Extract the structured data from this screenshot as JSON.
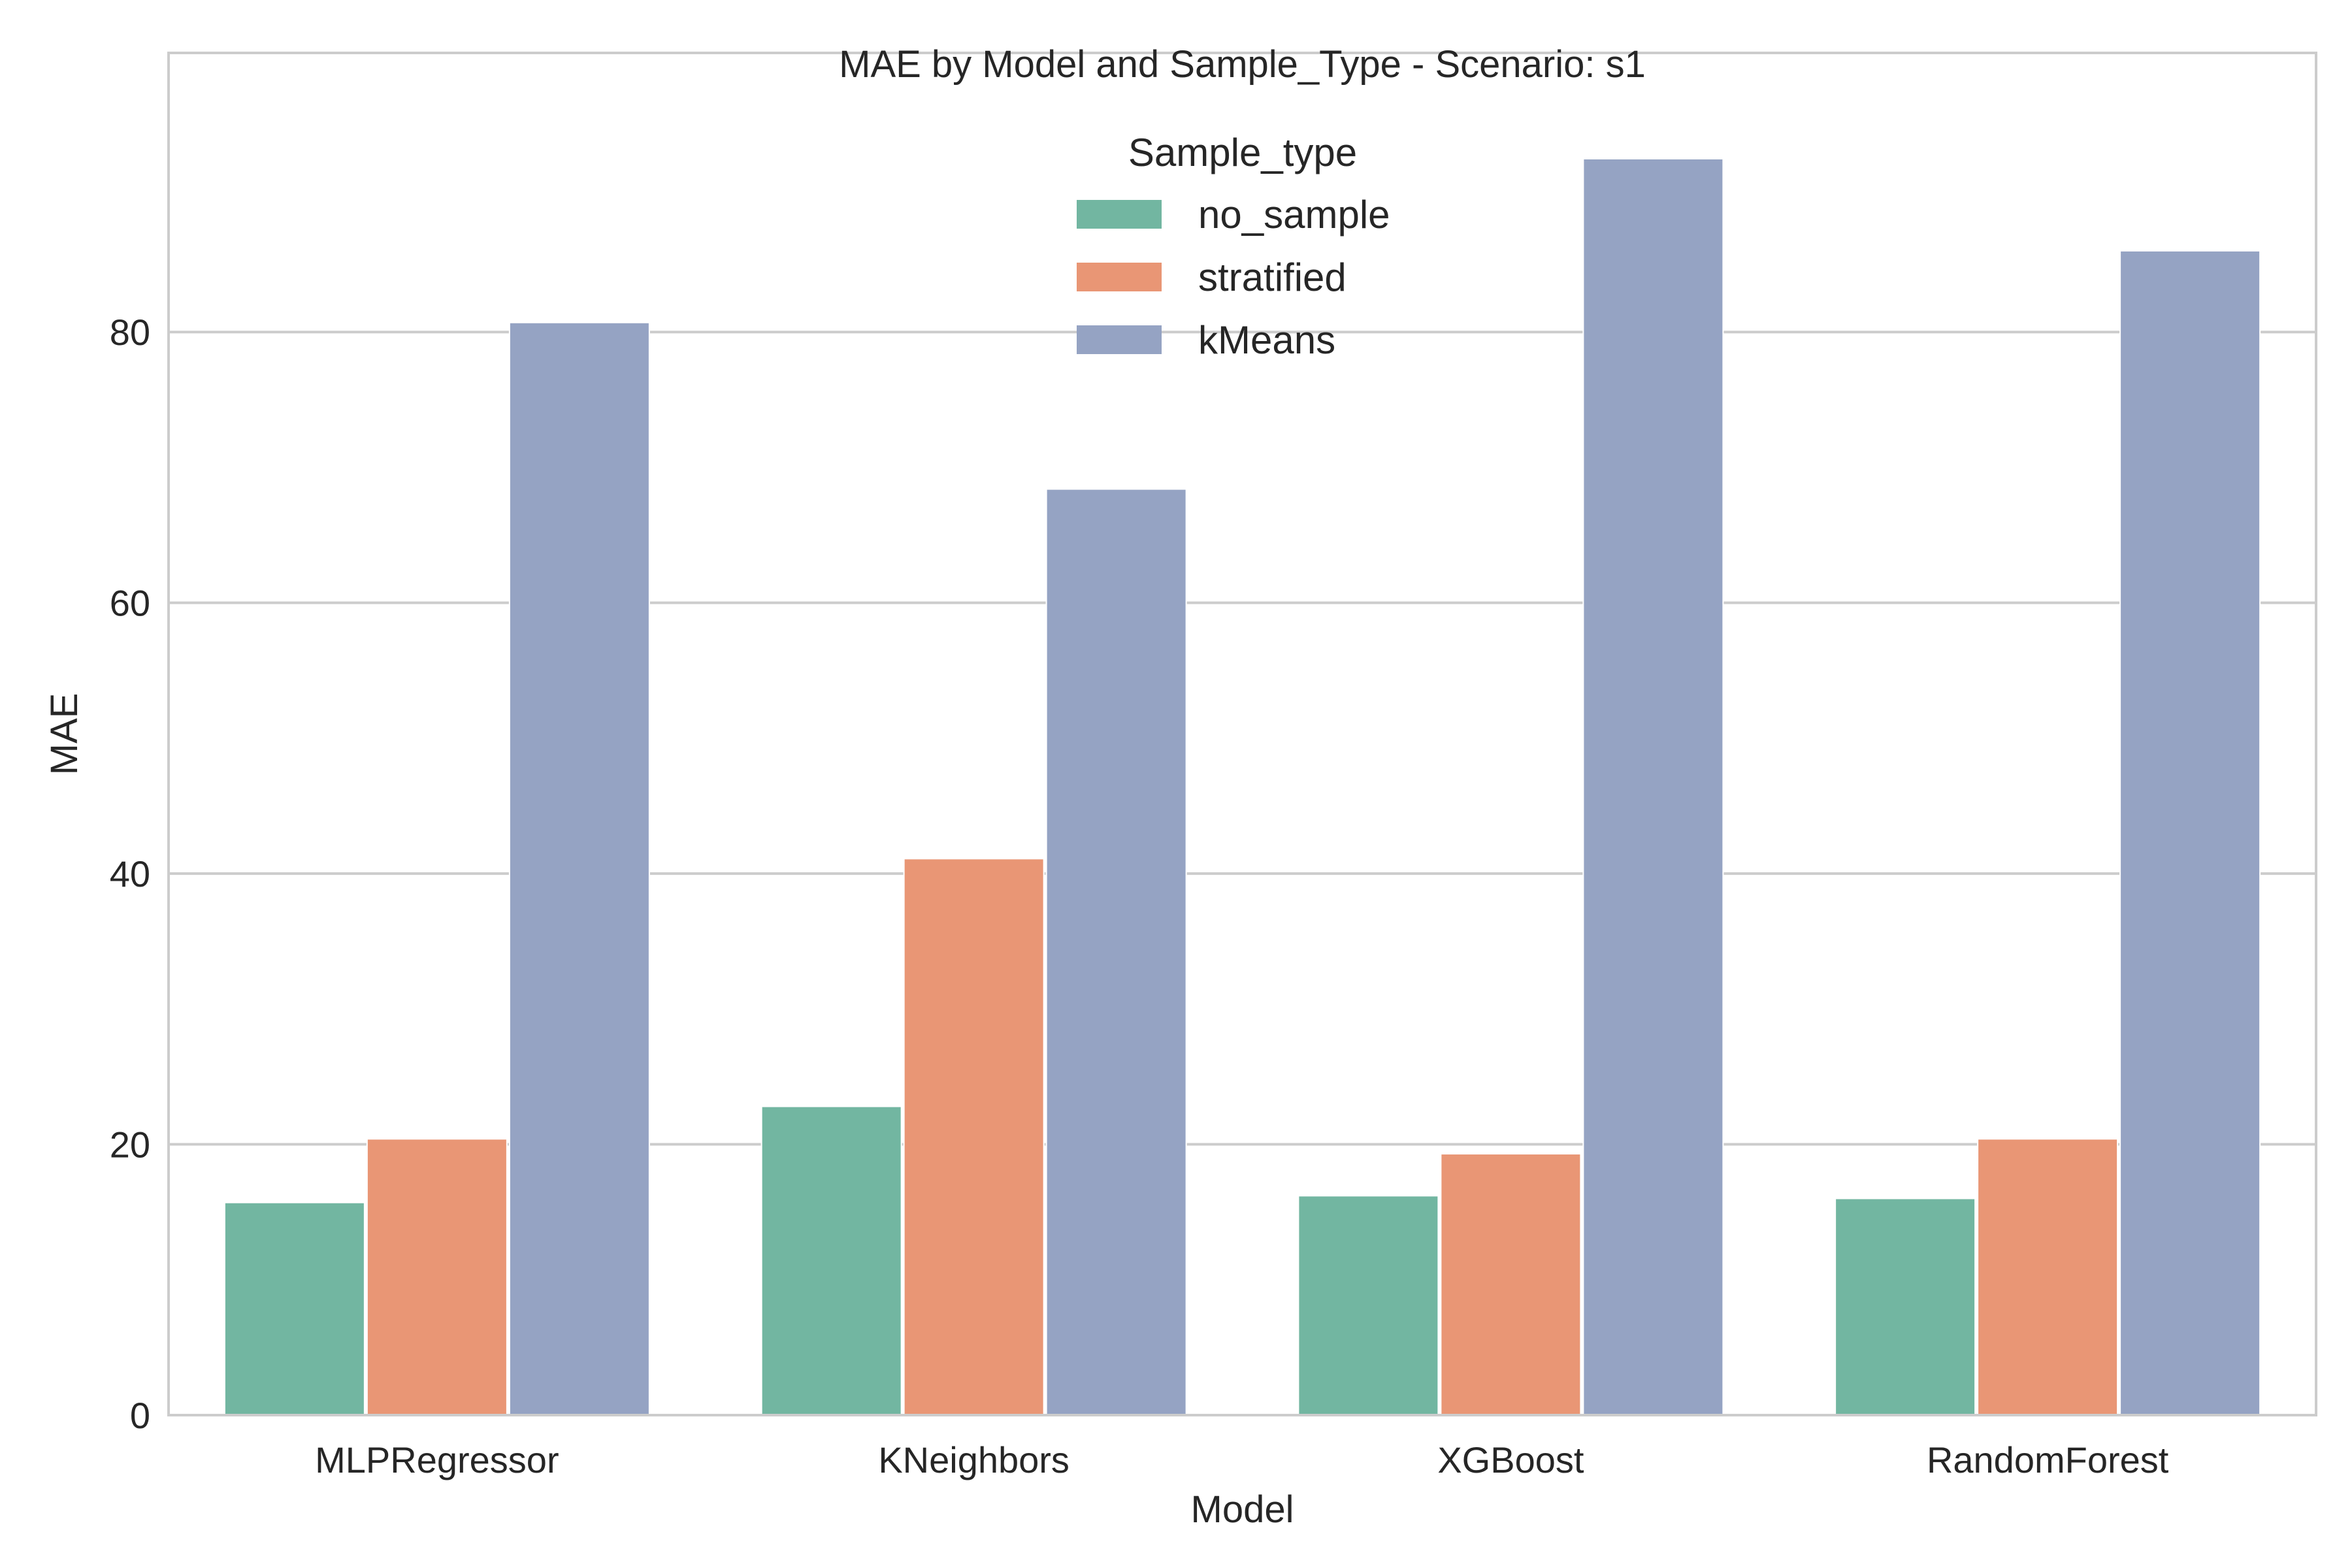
{
  "chart_data": {
    "type": "bar",
    "title": "MAE by Model and Sample_Type - Scenario: s1",
    "xlabel": "Model",
    "ylabel": "MAE",
    "categories": [
      "MLPRegressor",
      "KNeighbors",
      "XGBoost",
      "RandomForest"
    ],
    "series": [
      {
        "name": "no_sample",
        "color": "#72b6a1",
        "values": [
          15.7,
          22.8,
          16.2,
          16.0
        ]
      },
      {
        "name": "stratified",
        "color": "#e99675",
        "values": [
          20.4,
          41.1,
          19.3,
          20.4
        ]
      },
      {
        "name": "kMeans",
        "color": "#95a3c3",
        "values": [
          80.7,
          68.4,
          92.8,
          86.0
        ]
      }
    ],
    "ylim": [
      0,
      92.8
    ],
    "yticks": [
      0,
      20,
      40,
      60,
      80
    ],
    "grid": true,
    "legend": {
      "title": "Sample_type",
      "placement": "top-center"
    }
  }
}
